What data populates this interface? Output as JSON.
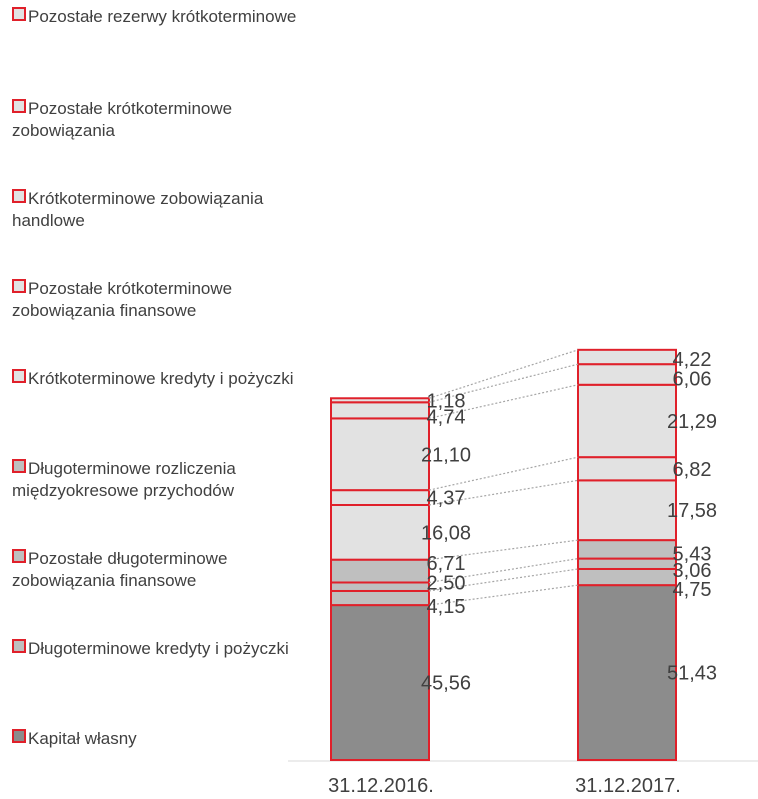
{
  "chart_data": {
    "type": "bar",
    "stacked": true,
    "categories": [
      "31.12.2016.",
      "31.12.2017."
    ],
    "series": [
      {
        "name": "Kapitał własny",
        "values": [
          45.56,
          51.43
        ],
        "color": "#8c8c8c"
      },
      {
        "name": "Długoterminowe kredyty i pożyczki",
        "values": [
          4.15,
          4.75
        ],
        "color": "#bfbfbf"
      },
      {
        "name": "Pozostałe długoterminowe zobowiązania finansowe",
        "values": [
          2.5,
          3.06
        ],
        "color": "#bfbfbf"
      },
      {
        "name": "Długoterminowe rozliczenia międzyokresowe przychodów",
        "values": [
          6.71,
          5.43
        ],
        "color": "#bfbfbf"
      },
      {
        "name": "Krótkoterminowe kredyty i pożyczki",
        "values": [
          16.08,
          17.58
        ],
        "color": "#e2e2e2"
      },
      {
        "name": "Pozostałe krótkoterminowe zobowiązania finansowe",
        "values": [
          4.37,
          6.82
        ],
        "color": "#e2e2e2"
      },
      {
        "name": "Krótkoterminowe zobowiązania handlowe",
        "values": [
          21.1,
          21.29
        ],
        "color": "#e2e2e2"
      },
      {
        "name": "Pozostałe krótkoterminowe zobowiązania",
        "values": [
          4.74,
          6.06
        ],
        "color": "#e2e2e2"
      },
      {
        "name": "Pozostałe rezerwy krótkoterminowe",
        "values": [
          1.18,
          4.22
        ],
        "color": "#e2e2e2"
      }
    ],
    "value_labels": [
      [
        "45,56",
        "4,15",
        "2,50",
        "6,71",
        "16,08",
        "4,37",
        "21,10",
        "4,74",
        "1,18"
      ],
      [
        "51,43",
        "4,75",
        "3,06",
        "5,43",
        "17,58",
        "6,82",
        "21,29",
        "6,06",
        "4,22"
      ]
    ],
    "legend": [
      "Pozostałe rezerwy krótkoterminowe",
      "Pozostałe krótkoterminowe zobowiązania",
      "Krótkoterminowe zobowiązania handlowe",
      "Pozostałe krótkoterminowe zobowiązania finansowe",
      "Krótkoterminowe kredyty i pożyczki",
      "Długoterminowe rozliczenia międzyokresowe przychodów",
      "Pozostałe długoterminowe zobowiązania finansowe",
      "Długoterminowe kredyty i pożyczki",
      "Kapitał własny"
    ],
    "legend_placement": "left",
    "grid": false,
    "border_color": "#e0202a",
    "connector_color": "#a6a6a6"
  }
}
